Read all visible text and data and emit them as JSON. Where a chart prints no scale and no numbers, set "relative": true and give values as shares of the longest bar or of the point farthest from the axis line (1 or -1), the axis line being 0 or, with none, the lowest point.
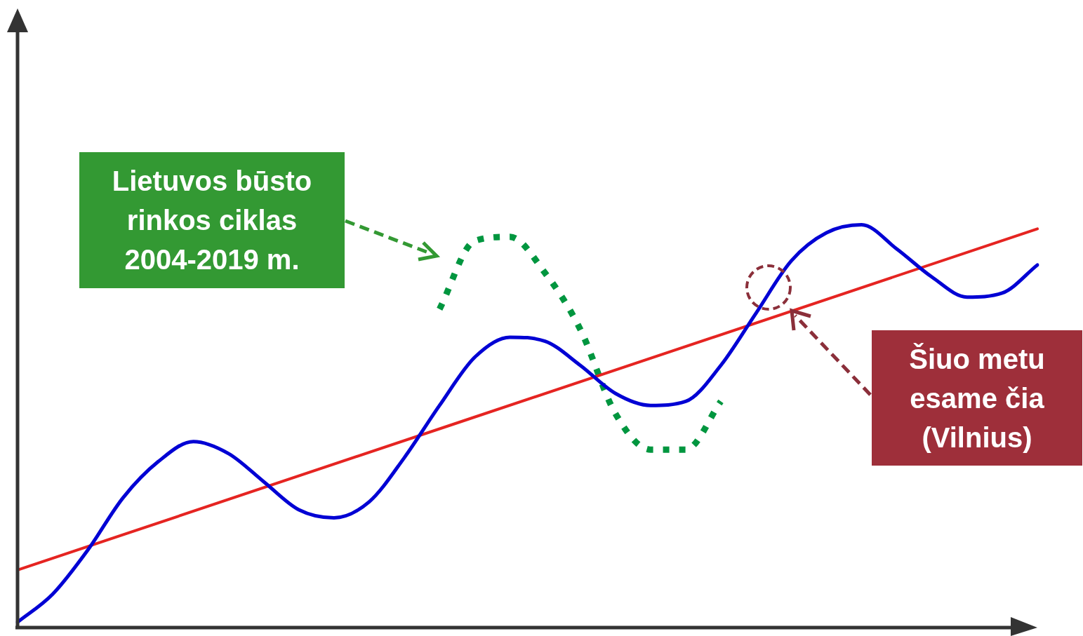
{
  "chart_data": {
    "type": "line",
    "relative": true,
    "categories": [
      null,
      null,
      null,
      null,
      null,
      null,
      null,
      null,
      null,
      null,
      null,
      null,
      null,
      null,
      null,
      null,
      null,
      null,
      null,
      null,
      null,
      null,
      null,
      null,
      null,
      null,
      null,
      null,
      null,
      null
    ],
    "tick_labels": false,
    "legend": false,
    "marker": "none",
    "series": [
      {
        "color": "#0000d4",
        "line_style": "solid",
        "values": [
          0.01,
          0.08,
          0.19,
          0.32,
          0.41,
          0.46,
          0.43,
          0.36,
          0.29,
          0.27,
          0.31,
          0.42,
          0.55,
          0.67,
          0.72,
          0.71,
          0.65,
          0.58,
          0.55,
          0.56,
          0.65,
          0.78,
          0.91,
          0.98,
          1.0,
          0.94,
          0.87,
          0.82,
          0.83,
          0.9
        ]
      },
      {
        "color": "#e52421",
        "line_style": "solid",
        "values": [
          0.14,
          null,
          null,
          null,
          null,
          null,
          null,
          null,
          null,
          null,
          null,
          null,
          null,
          null,
          null,
          null,
          null,
          null,
          null,
          null,
          null,
          null,
          null,
          null,
          null,
          null,
          null,
          null,
          null,
          0.99
        ]
      },
      {
        "color": "#00963f",
        "line_style": "dotted",
        "values": [
          null,
          null,
          null,
          null,
          null,
          null,
          null,
          null,
          null,
          null,
          null,
          null,
          0.79,
          0.96,
          0.97,
          0.88,
          0.74,
          0.53,
          0.44,
          0.44,
          0.56,
          null,
          null,
          null,
          null,
          null,
          null,
          null,
          null,
          null
        ]
      }
    ],
    "annotations": [
      "Lietuvos būsto rinkos ciklas 2004-2019 m.",
      "Šiuo metu esame čia (Vilnius)"
    ]
  }
}
